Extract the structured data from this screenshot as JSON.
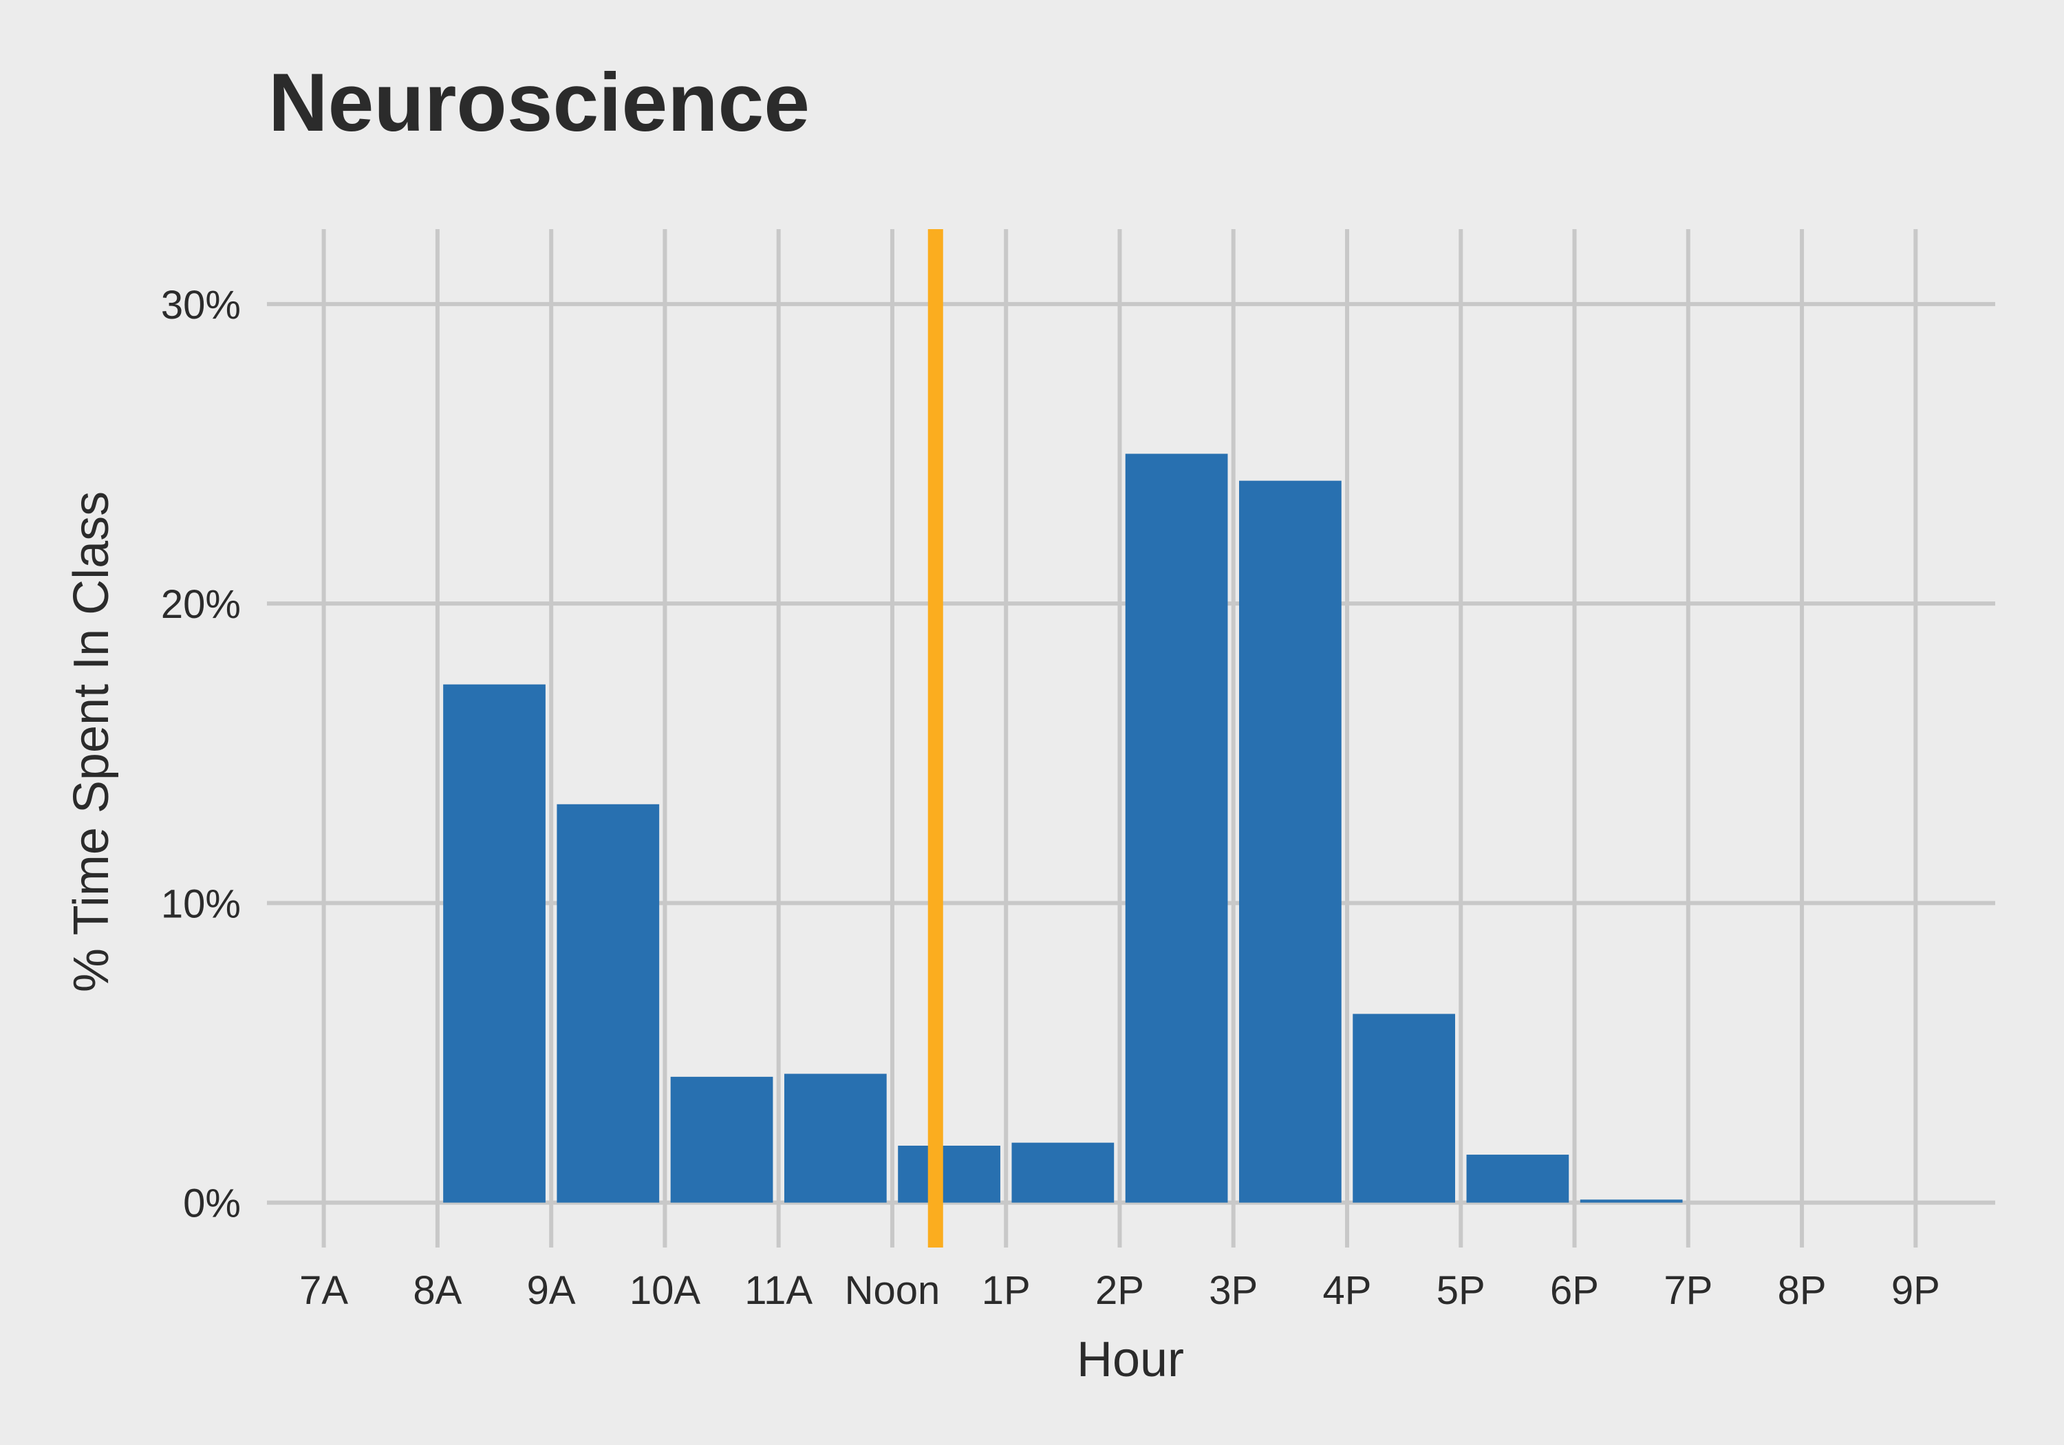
{
  "chart_data": {
    "type": "bar",
    "title": "Neuroscience",
    "xlabel": "Hour",
    "ylabel": "% Time Spent In Class",
    "x_ticks": [
      {
        "value": 7,
        "label": "7A"
      },
      {
        "value": 8,
        "label": "8A"
      },
      {
        "value": 9,
        "label": "9A"
      },
      {
        "value": 10,
        "label": "10A"
      },
      {
        "value": 11,
        "label": "11A"
      },
      {
        "value": 12,
        "label": "Noon"
      },
      {
        "value": 13,
        "label": "1P"
      },
      {
        "value": 14,
        "label": "2P"
      },
      {
        "value": 15,
        "label": "3P"
      },
      {
        "value": 16,
        "label": "4P"
      },
      {
        "value": 17,
        "label": "5P"
      },
      {
        "value": 18,
        "label": "6P"
      },
      {
        "value": 19,
        "label": "7P"
      },
      {
        "value": 20,
        "label": "8P"
      },
      {
        "value": 21,
        "label": "9P"
      }
    ],
    "y_ticks": [
      {
        "value": 0,
        "label": "0%"
      },
      {
        "value": 10,
        "label": "10%"
      },
      {
        "value": 20,
        "label": "20%"
      },
      {
        "value": 30,
        "label": "30%"
      }
    ],
    "bars": [
      {
        "start": 7,
        "end": 8,
        "value": 0
      },
      {
        "start": 8,
        "end": 9,
        "value": 17.3
      },
      {
        "start": 9,
        "end": 10,
        "value": 13.3
      },
      {
        "start": 10,
        "end": 11,
        "value": 4.2
      },
      {
        "start": 11,
        "end": 12,
        "value": 4.3
      },
      {
        "start": 12,
        "end": 13,
        "value": 1.9
      },
      {
        "start": 13,
        "end": 14,
        "value": 2.0
      },
      {
        "start": 14,
        "end": 15,
        "value": 25.0
      },
      {
        "start": 15,
        "end": 16,
        "value": 24.1
      },
      {
        "start": 16,
        "end": 17,
        "value": 6.3
      },
      {
        "start": 17,
        "end": 18,
        "value": 1.6
      },
      {
        "start": 18,
        "end": 19,
        "value": 0.1
      },
      {
        "start": 19,
        "end": 20,
        "value": 0
      },
      {
        "start": 20,
        "end": 21,
        "value": 0
      }
    ],
    "vline": {
      "x": 12.38,
      "color": "#fbad1f"
    },
    "bar_color": "#2870b0",
    "xlim": [
      6.5,
      21.7
    ],
    "ylim": [
      -1.5,
      32.5
    ],
    "grid": true,
    "legend": "none"
  }
}
